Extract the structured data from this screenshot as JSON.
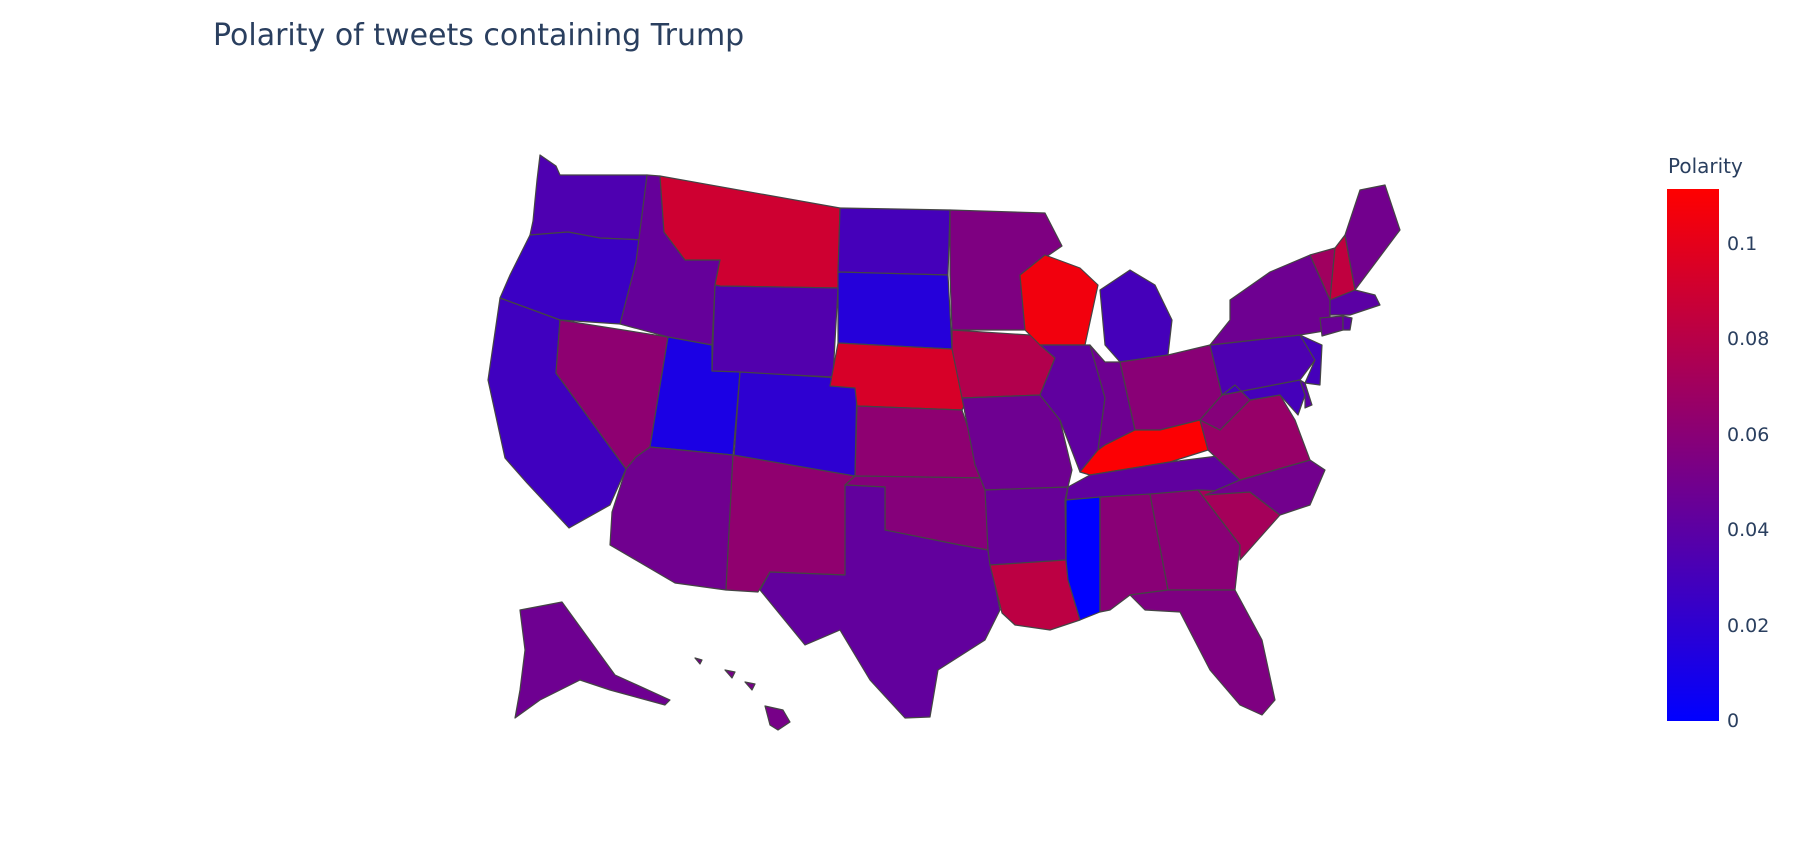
{
  "title": "Polarity of tweets containing Trump",
  "colorbar": {
    "title": "Polarity",
    "ticks": [
      "0",
      "0.02",
      "0.04",
      "0.06",
      "0.08",
      "0.1"
    ],
    "tick_values": [
      0,
      0.02,
      0.04,
      0.06,
      0.08,
      0.1
    ],
    "min": 0,
    "max": 0.1115,
    "colors": {
      "low": "#0000ff",
      "high": "#ff0000"
    }
  },
  "border_color": "#444444",
  "states": {
    "WA": 0.034,
    "OR": 0.026,
    "CA": 0.028,
    "NV": 0.062,
    "ID": 0.044,
    "MT": 0.09,
    "WY": 0.036,
    "UT": 0.012,
    "CO": 0.02,
    "AZ": 0.049,
    "NM": 0.063,
    "ND": 0.03,
    "SD": 0.016,
    "NE": 0.094,
    "KS": 0.062,
    "OK": 0.058,
    "TX": 0.043,
    "MN": 0.055,
    "IA": 0.078,
    "MO": 0.048,
    "AR": 0.045,
    "LA": 0.082,
    "WI": 0.106,
    "IL": 0.042,
    "MI": 0.03,
    "IN": 0.048,
    "OH": 0.06,
    "KY": 0.11,
    "TN": 0.042,
    "MS": 0.0,
    "AL": 0.06,
    "GA": 0.06,
    "FL": 0.055,
    "SC": 0.072,
    "NC": 0.05,
    "VA": 0.066,
    "WV": 0.058,
    "PA": 0.034,
    "NY": 0.048,
    "NJ": 0.03,
    "MD": 0.03,
    "DE": 0.04,
    "VT": 0.07,
    "NH": 0.084,
    "ME": 0.05,
    "MA": 0.04,
    "CT": 0.046,
    "RI": 0.04,
    "AK": 0.048,
    "HI": 0.052
  }
}
